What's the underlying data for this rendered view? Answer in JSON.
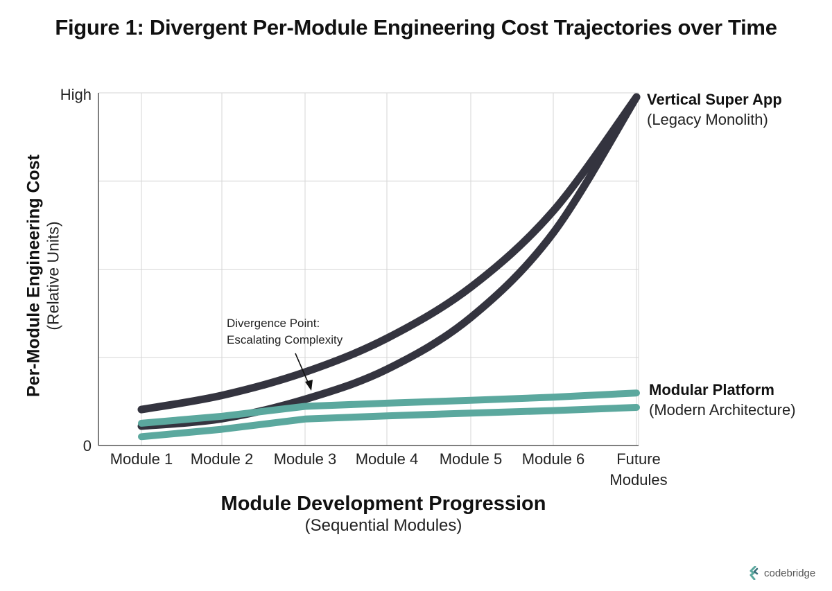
{
  "title": "Figure 1: Divergent Per-Module Engineering Cost Trajectories over Time",
  "chart_data": {
    "type": "line",
    "categories": [
      "Module 1",
      "Module 2",
      "Module 3",
      "Module 4",
      "Module 5",
      "Module 6",
      "Future Modules"
    ],
    "yticks": [
      "0",
      "High"
    ],
    "ylim": [
      0,
      100
    ],
    "xlabel": "Module Development Progression",
    "xlabel_sub": "(Sequential Modules)",
    "ylabel": "Per-Module Engineering Cost",
    "ylabel_sub": "(Relative Units)",
    "grid": true,
    "series": [
      {
        "name": "Vertical Super App",
        "subtitle": "(Legacy Monolith)",
        "color": "#34343f",
        "band": {
          "upper": [
            10.2,
            14.2,
            20.8,
            30.4,
            44.9,
            66.5,
            98.8
          ],
          "lower": [
            5.5,
            7.6,
            13.1,
            21.6,
            36.3,
            60.3,
            98.8
          ]
        }
      },
      {
        "name": "Modular Platform",
        "subtitle": "(Modern Architecture)",
        "color": "#5ba89e",
        "band": {
          "upper": [
            6.3,
            8.3,
            11.1,
            12.0,
            12.8,
            13.7,
            14.9
          ],
          "lower": [
            2.5,
            4.6,
            7.5,
            8.4,
            9.2,
            9.9,
            10.8
          ]
        }
      }
    ],
    "annotation": {
      "lines": [
        "Divergence Point:",
        "Escalating Complexity"
      ],
      "points_to": "Module 3"
    }
  },
  "logo": {
    "text": "codebridge",
    "icon": "codebridge-logo-icon"
  }
}
